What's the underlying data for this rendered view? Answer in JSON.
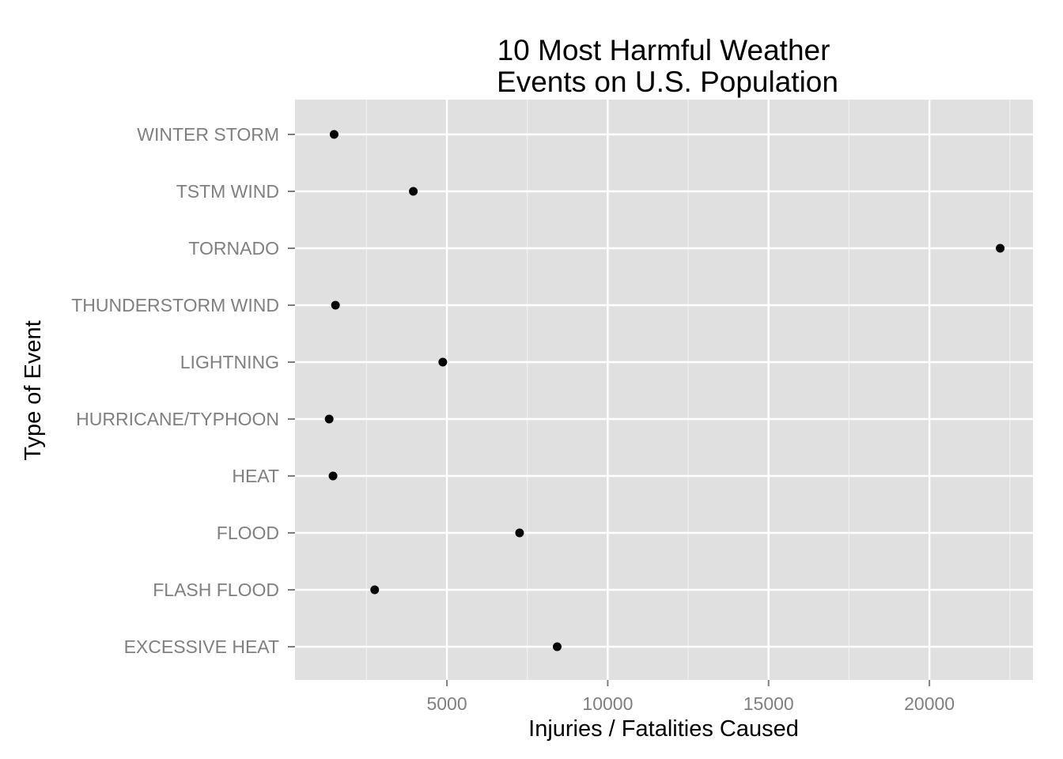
{
  "chart_data": {
    "type": "scatter",
    "title_lines": [
      "10 Most Harmful Weather",
      "Events on U.S. Population"
    ],
    "xlabel": "Injuries / Fatalities Caused",
    "ylabel": "Type of Event",
    "categories": [
      "EXCESSIVE HEAT",
      "FLASH FLOOD",
      "FLOOD",
      "HEAT",
      "HURRICANE/TYPHOON",
      "THUNDERSTORM WIND",
      "LIGHTNING",
      "TORNADO",
      "TSTM WIND",
      "WINTER STORM"
    ],
    "order_bottom_to_top": [
      "EXCESSIVE HEAT",
      "FLASH FLOOD",
      "FLOOD",
      "HEAT",
      "HURRICANE/TYPHOON",
      "LIGHTNING",
      "THUNDERSTORM WIND",
      "TORNADO",
      "TSTM WIND",
      "WINTER STORM"
    ],
    "values": {
      "EXCESSIVE HEAT": 8428,
      "FLASH FLOOD": 2755,
      "FLOOD": 7259,
      "HEAT": 1459,
      "HURRICANE/TYPHOON": 1339,
      "LIGHTNING": 4872,
      "THUNDERSTORM WIND": 1535,
      "TORNADO": 22200,
      "TSTM WIND": 3955,
      "WINTER STORM": 1493
    },
    "x_ticks": [
      5000,
      10000,
      15000,
      20000
    ],
    "xlim": [
      0,
      23300
    ],
    "grid": true,
    "colors": {
      "panel": "#e0e0e0",
      "grid_major": "#ffffff",
      "grid_minor": "#f0f0f0",
      "point": "#000000",
      "tick_text": "#7f7f7f"
    }
  }
}
